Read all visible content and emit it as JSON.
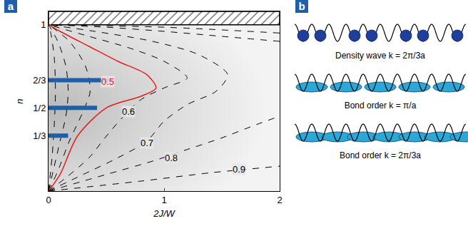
{
  "chart_data": {
    "type": "line",
    "panel_label": "a",
    "x_label": "2J/W",
    "y_label": "n",
    "xlim": [
      0,
      2
    ],
    "xticks": [
      0,
      1,
      2
    ],
    "ylim": [
      0,
      1.08
    ],
    "yticks": [
      {
        "value": 0.3333,
        "label": "1/3"
      },
      {
        "value": 0.5,
        "label": "1/2"
      },
      {
        "value": 0.6667,
        "label": "2/3"
      },
      1
    ],
    "hatched_band": [
      1,
      1.08
    ],
    "series": [
      {
        "color": "#000000",
        "line_style": "dashed",
        "x": [
          0,
          0.03,
          0.05,
          0.06,
          0.05,
          0.02,
          0
        ],
        "values": [
          0,
          0.2,
          0.4,
          0.6,
          0.8,
          0.95,
          1
        ]
      },
      {
        "color": "#000000",
        "line_style": "dashed",
        "x": [
          0,
          0.05,
          0.1,
          0.15,
          0.17,
          0.15,
          0.08,
          0
        ],
        "values": [
          0,
          0.15,
          0.3,
          0.45,
          0.6,
          0.75,
          0.9,
          1
        ]
      },
      {
        "color": "#000000",
        "line_style": "dashed",
        "x": [
          0,
          0.08,
          0.18,
          0.3,
          0.36,
          0.32,
          0.18,
          0
        ],
        "values": [
          0,
          0.12,
          0.3,
          0.48,
          0.6,
          0.75,
          0.9,
          1
        ]
      },
      {
        "color": "#e0201b",
        "line_style": "solid",
        "x": [
          0,
          0.1,
          0.25,
          0.5,
          0.8,
          0.93,
          0.85,
          0.6,
          0.35,
          0.1,
          0
        ],
        "values": [
          0,
          0.1,
          0.33,
          0.5,
          0.57,
          0.62,
          0.7,
          0.78,
          0.87,
          0.96,
          1
        ]
      },
      {
        "color": "#000000",
        "line_style": "dashed",
        "x": [
          0,
          0.15,
          0.35,
          0.5,
          0.65,
          0.8,
          1.0,
          1.2,
          1.0,
          0.7,
          0.35,
          0
        ],
        "values": [
          0,
          0.08,
          0.2,
          0.33,
          0.45,
          0.55,
          0.62,
          0.68,
          0.78,
          0.86,
          0.93,
          1
        ]
      },
      {
        "color": "#000000",
        "line_style": "dashed",
        "x": [
          0,
          0.3,
          0.6,
          0.85,
          1.0,
          1.2,
          1.45,
          1.55,
          1.3,
          0.9,
          0.4,
          0
        ],
        "values": [
          0,
          0.1,
          0.2,
          0.3,
          0.42,
          0.52,
          0.6,
          0.7,
          0.82,
          0.9,
          0.96,
          1
        ]
      },
      {
        "color": "#000000",
        "line_style": "dashed",
        "x": [
          0,
          0.5,
          0.9,
          1.2,
          1.5,
          1.8,
          2,
          null,
          2,
          1.5,
          1.0,
          0.5,
          0
        ],
        "values": [
          0,
          0.1,
          0.18,
          0.25,
          0.32,
          0.4,
          0.45,
          null,
          0.9,
          0.93,
          0.96,
          0.985,
          1
        ]
      },
      {
        "color": "#000000",
        "line_style": "dashed",
        "x": [
          0,
          0.8,
          1.4,
          1.7,
          2,
          null,
          2,
          1.0,
          0
        ],
        "values": [
          0,
          0.06,
          0.11,
          0.13,
          0.15,
          null,
          0.95,
          0.985,
          1
        ]
      }
    ],
    "bars": [
      {
        "y": 0.3333,
        "x": [
          0,
          0.17
        ]
      },
      {
        "y": 0.5,
        "x": [
          0,
          0.42
        ]
      },
      {
        "y": 0.6667,
        "x": [
          0,
          0.52
        ]
      }
    ],
    "bar_color": "#1f5ea8",
    "annotations": [
      {
        "text": "0.5",
        "x": 0.51,
        "y": 0.66,
        "color": "#e0201b"
      },
      {
        "text": "0.6",
        "x": 0.69,
        "y": 0.48,
        "color": "#000000"
      },
      {
        "text": "0.7",
        "x": 0.85,
        "y": 0.29,
        "color": "#000000"
      },
      {
        "text": "0.8",
        "x": 1.06,
        "y": 0.2,
        "color": "#000000"
      },
      {
        "text": "0.9",
        "x": 1.65,
        "y": 0.13,
        "color": "#000000"
      }
    ]
  },
  "panel_b": {
    "label": "b",
    "wells": 10,
    "dot_color": "#1f3f9a",
    "bond_color": "#2aa8d8",
    "rows": [
      {
        "caption": "Density wave k = 2π/3a",
        "occupancy": [
          1,
          1,
          0,
          1,
          1,
          0,
          1,
          1,
          0,
          1
        ]
      },
      {
        "caption": "Bond order k = π/a",
        "bonds": [
          [
            0,
            1
          ],
          [
            2,
            3
          ],
          [
            4,
            5
          ],
          [
            6,
            7
          ],
          [
            8,
            9
          ]
        ]
      },
      {
        "caption": "Bond order k = 2π/3a",
        "bonds": [
          [
            0,
            1
          ],
          [
            1.5,
            2.5
          ],
          [
            3,
            4
          ],
          [
            4.5,
            5.5
          ],
          [
            6,
            7
          ],
          [
            7.5,
            8.5
          ],
          [
            9,
            10
          ]
        ]
      }
    ]
  }
}
